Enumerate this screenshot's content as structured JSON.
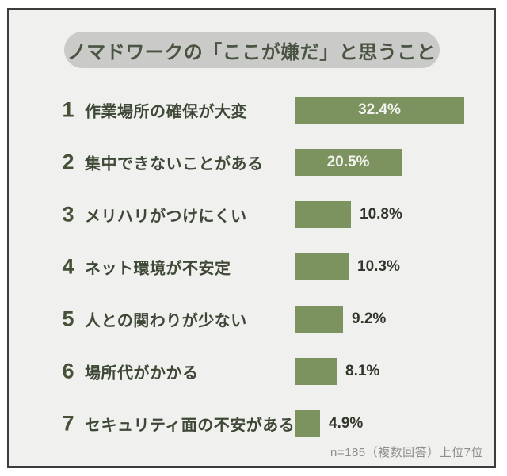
{
  "title": "ノマドワークの「ここが嫌だ」と思うこと",
  "footnote": "n=185（複数回答）上位7位",
  "colors": {
    "panel_background": "#f0f0ee",
    "panel_border": "#3c3c3a",
    "title_pill_background": "#cacac8",
    "title_text": "#4a5442",
    "bar": "#7c9360",
    "bar_label_inside": "#f2f2ee",
    "bar_label_outside": "#30362b",
    "footnote_text": "#8e8e8c"
  },
  "chart_data": {
    "type": "bar",
    "orientation": "horizontal",
    "title": "ノマドワークの「ここが嫌だ」と思うこと",
    "note": "n=185（複数回答）上位7位",
    "sample_size": "n=185",
    "ranks": [
      1,
      2,
      3,
      4,
      5,
      6,
      7
    ],
    "categories": [
      "作業場所の確保が大変",
      "集中できないことがある",
      "メリハリがつけにくい",
      "ネット環境が不安定",
      "人との関わりが少ない",
      "場所代がかかる",
      "セキュリティ面の不安がある"
    ],
    "values": [
      32.4,
      20.5,
      10.8,
      10.3,
      9.2,
      8.1,
      4.9
    ],
    "value_labels": [
      "32.4%",
      "20.5%",
      "10.8%",
      "10.3%",
      "9.2%",
      "8.1%",
      "4.9%"
    ],
    "xlim": [
      0,
      35
    ],
    "grid": false,
    "legend": false
  }
}
